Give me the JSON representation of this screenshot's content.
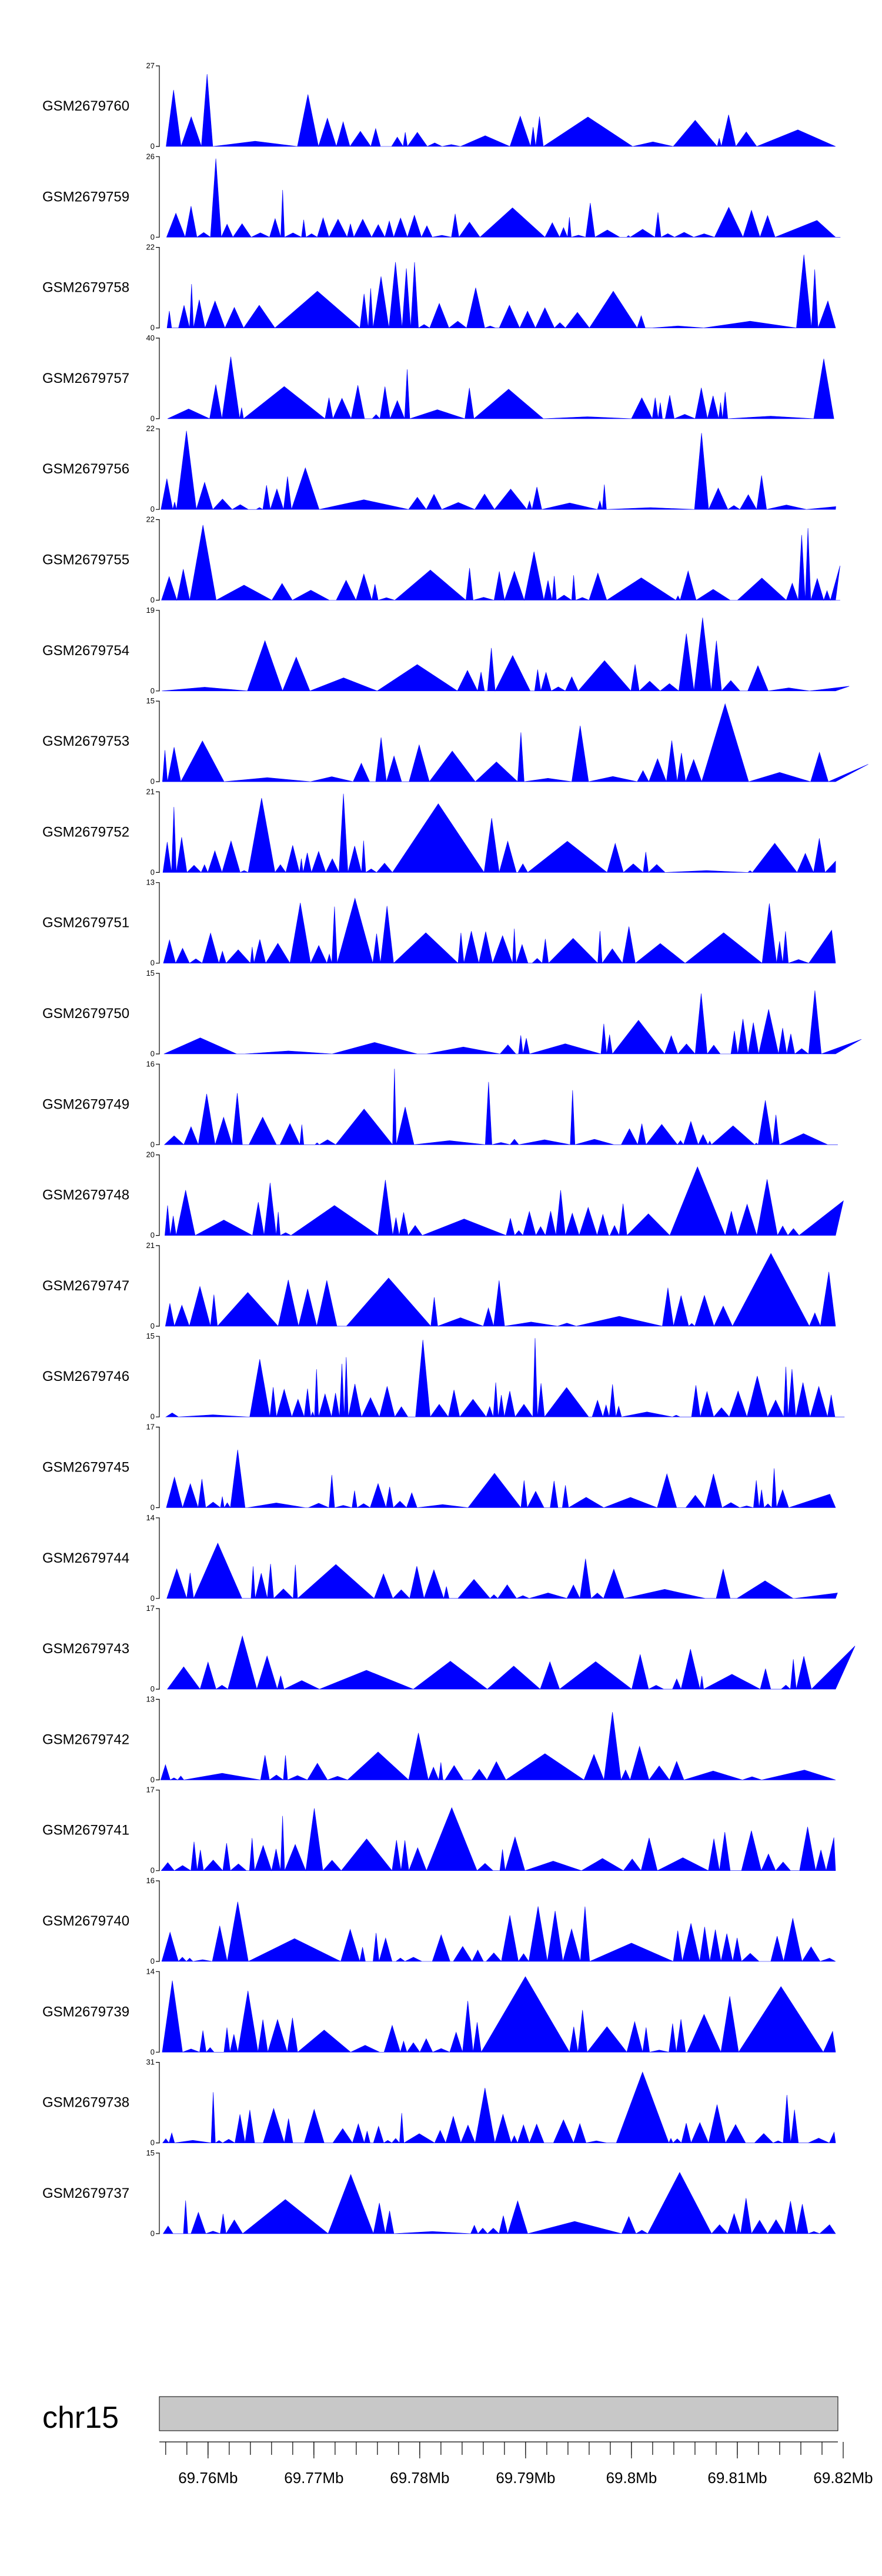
{
  "chart_data": {
    "type": "area",
    "tracks": [
      {
        "name": "GSM2679760",
        "ymax": 27
      },
      {
        "name": "GSM2679759",
        "ymax": 26
      },
      {
        "name": "GSM2679758",
        "ymax": 22
      },
      {
        "name": "GSM2679757",
        "ymax": 40
      },
      {
        "name": "GSM2679756",
        "ymax": 22
      },
      {
        "name": "GSM2679755",
        "ymax": 22
      },
      {
        "name": "GSM2679754",
        "ymax": 19
      },
      {
        "name": "GSM2679753",
        "ymax": 15
      },
      {
        "name": "GSM2679752",
        "ymax": 21
      },
      {
        "name": "GSM2679751",
        "ymax": 13
      },
      {
        "name": "GSM2679750",
        "ymax": 15
      },
      {
        "name": "GSM2679749",
        "ymax": 16
      },
      {
        "name": "GSM2679748",
        "ymax": 20
      },
      {
        "name": "GSM2679747",
        "ymax": 21
      },
      {
        "name": "GSM2679746",
        "ymax": 15
      },
      {
        "name": "GSM2679745",
        "ymax": 17
      },
      {
        "name": "GSM2679744",
        "ymax": 14
      },
      {
        "name": "GSM2679743",
        "ymax": 17
      },
      {
        "name": "GSM2679742",
        "ymax": 13
      },
      {
        "name": "GSM2679741",
        "ymax": 17
      },
      {
        "name": "GSM2679740",
        "ymax": 16
      },
      {
        "name": "GSM2679739",
        "ymax": 14
      },
      {
        "name": "GSM2679738",
        "ymax": 31
      },
      {
        "name": "GSM2679737",
        "ymax": 15
      }
    ],
    "ymin_label": "0",
    "chromosome": "chr15",
    "xlim": [
      69.7554,
      69.8195
    ],
    "xticks": [
      {
        "value": 69.76,
        "label": "69.76Mb"
      },
      {
        "value": 69.77,
        "label": "69.77Mb"
      },
      {
        "value": 69.78,
        "label": "69.78Mb"
      },
      {
        "value": 69.79,
        "label": "69.79Mb"
      },
      {
        "value": 69.8,
        "label": "69.8Mb"
      },
      {
        "value": 69.81,
        "label": "69.81Mb"
      },
      {
        "value": 69.82,
        "label": "69.82Mb"
      }
    ],
    "minor_tick_step": 0.002,
    "signal_color": "#0000ff",
    "ideogram_color": "#c8c8c8",
    "grid": false
  }
}
